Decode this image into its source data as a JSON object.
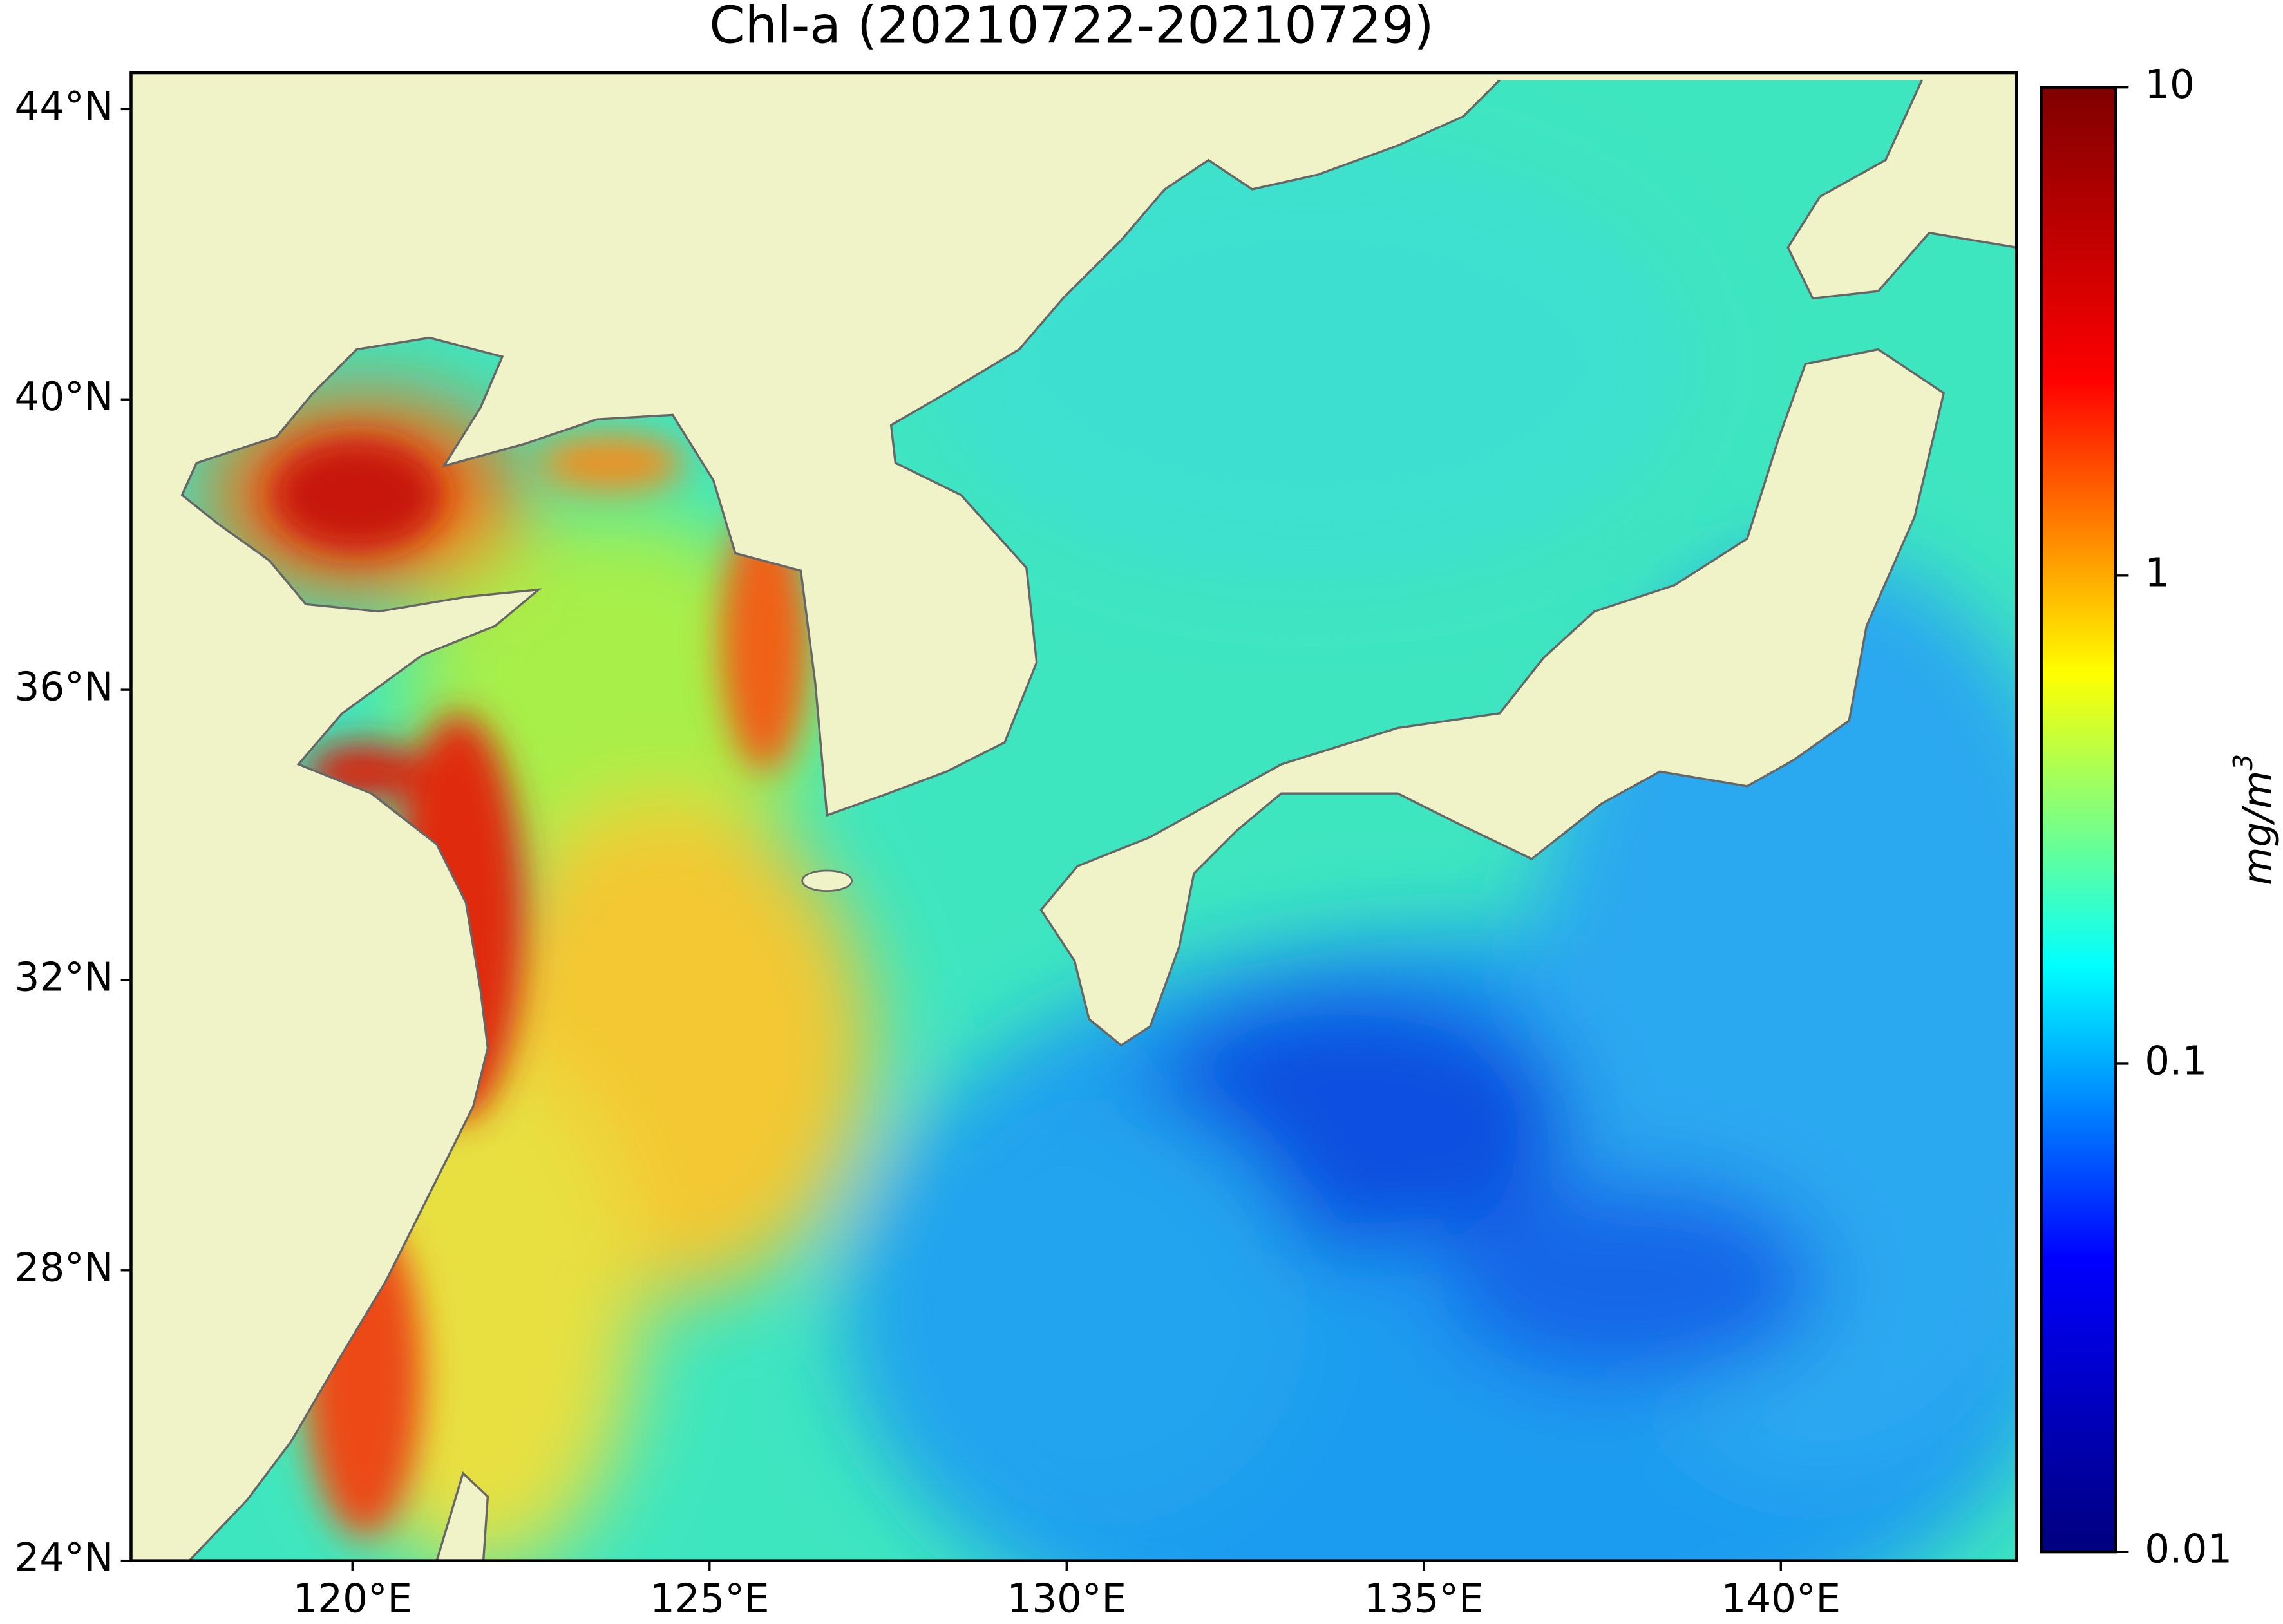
{
  "chart_data": {
    "type": "map",
    "title": "Chl-a (20210722-20210729)",
    "xlim": [
      116.9,
      143.3
    ],
    "ylim": [
      24,
      44.5
    ],
    "xticks": [
      {
        "value": 120,
        "label": "120°E"
      },
      {
        "value": 125,
        "label": "125°E"
      },
      {
        "value": 130,
        "label": "130°E"
      },
      {
        "value": 135,
        "label": "135°E"
      },
      {
        "value": 140,
        "label": "140°E"
      }
    ],
    "yticks": [
      {
        "value": 24,
        "label": "24°N"
      },
      {
        "value": 28,
        "label": "28°N"
      },
      {
        "value": 32,
        "label": "32°N"
      },
      {
        "value": 36,
        "label": "36°N"
      },
      {
        "value": 40,
        "label": "40°N"
      },
      {
        "value": 44,
        "label": "44°N"
      }
    ],
    "colorbar": {
      "scale": "log",
      "range": [
        0.01,
        10
      ],
      "ticks": [
        0.01,
        0.1,
        1,
        10
      ],
      "label": "mg/m",
      "label_superscript": "3",
      "colors": [
        "#00007f",
        "#0000ff",
        "#00ffff",
        "#ffff00",
        "#ff0000",
        "#7f0000"
      ]
    }
  }
}
